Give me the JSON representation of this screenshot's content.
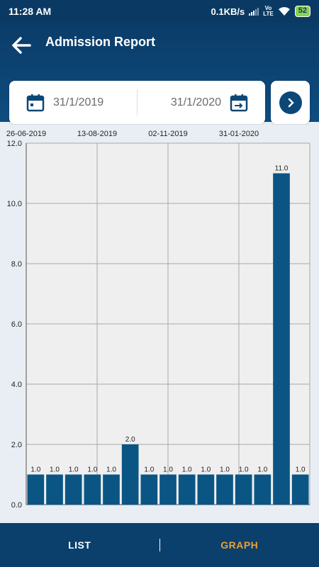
{
  "status": {
    "time": "11:28 AM",
    "network_speed": "0.1KB/s",
    "volte_top": "Vo",
    "volte_bottom": "LTE",
    "battery": "52"
  },
  "header": {
    "title": "Admission Report"
  },
  "date_range": {
    "from": "31/1/2019",
    "to": "31/1/2020"
  },
  "tabs": {
    "list": "LIST",
    "graph": "GRAPH",
    "active": "graph"
  },
  "chart_data": {
    "type": "bar",
    "x_tick_labels": [
      "26-06-2019",
      "13-08-2019",
      "02-11-2019",
      "31-01-2020"
    ],
    "values": [
      1.0,
      1.0,
      1.0,
      1.0,
      1.0,
      2.0,
      1.0,
      1.0,
      1.0,
      1.0,
      1.0,
      1.0,
      1.0,
      11.0,
      1.0
    ],
    "value_labels": [
      "1.0",
      "1.0",
      "1.0",
      "1.0",
      "1.0",
      "2.0",
      "1.0",
      "1.0",
      "1.0",
      "1.0",
      "1.0",
      "1.0",
      "1.0",
      "11.0",
      "1.0"
    ],
    "y_ticks": [
      "0.0",
      "2.0",
      "4.0",
      "6.0",
      "8.0",
      "10.0",
      "12.0"
    ],
    "ylim": [
      0,
      12
    ],
    "bar_color": "#0b5585",
    "grid": true
  }
}
